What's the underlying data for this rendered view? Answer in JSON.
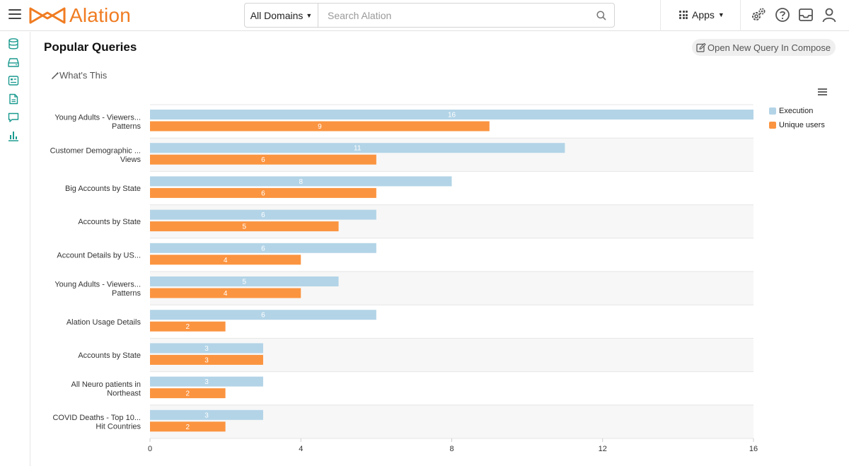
{
  "app": {
    "logo_text": "Alation"
  },
  "search": {
    "domain_label": "All Domains",
    "placeholder": "Search Alation",
    "value": ""
  },
  "header": {
    "apps_label": "Apps"
  },
  "page": {
    "title": "Popular Queries",
    "compose_label": "Open New Query In Compose",
    "whats_this_label": "What's This"
  },
  "colors": {
    "execution": "#b3d4e7",
    "unique_users": "#fb9440",
    "accent": "#f07c22",
    "rail_icon": "#1a9a8f"
  },
  "icons": {
    "top": [
      "gears-icon",
      "help-icon",
      "inbox-icon",
      "user-icon"
    ],
    "rail": [
      "database-icon",
      "drive-icon",
      "catalog-icon",
      "document-icon",
      "chat-icon",
      "chart-icon"
    ]
  },
  "chart_data": {
    "type": "bar",
    "orientation": "horizontal",
    "categories": [
      [
        "Young Adults - Viewers...",
        "Patterns"
      ],
      [
        "Customer Demographic ...",
        "Views"
      ],
      [
        "Big Accounts by State"
      ],
      [
        "Accounts by State"
      ],
      [
        "Account Details by US..."
      ],
      [
        "Young Adults - Viewers...",
        "Patterns"
      ],
      [
        "Alation Usage Details"
      ],
      [
        "Accounts by State"
      ],
      [
        "All Neuro patients in",
        "Northeast"
      ],
      [
        "COVID Deaths - Top 10...",
        "Hit Countries"
      ]
    ],
    "series": [
      {
        "name": "Execution",
        "values": [
          16,
          11,
          8,
          6,
          6,
          5,
          6,
          3,
          3,
          3
        ]
      },
      {
        "name": "Unique users",
        "values": [
          9,
          6,
          6,
          5,
          4,
          4,
          2,
          3,
          2,
          2
        ]
      }
    ],
    "xlim": [
      0,
      16
    ],
    "xticks": [
      "0",
      "4",
      "8",
      "12",
      "16"
    ],
    "legend_position": "top-right",
    "data_labels": true
  }
}
